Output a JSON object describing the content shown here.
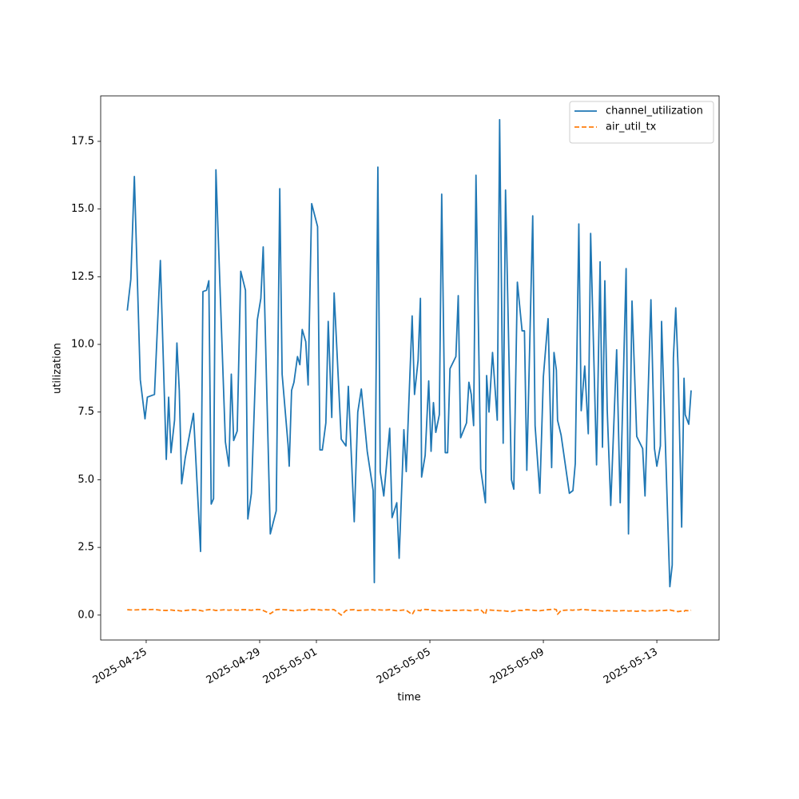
{
  "chart_data": {
    "type": "line",
    "xlabel": "time",
    "ylabel": "utilization",
    "x": [
      "2025-04-24 08:00",
      "2025-04-24 11:00",
      "2025-04-24 14:00",
      "2025-04-24 19:00",
      "2025-04-24 23:00",
      "2025-04-25 01:00",
      "2025-04-25 07:00",
      "2025-04-25 12:00",
      "2025-04-25 17:00",
      "2025-04-25 19:00",
      "2025-04-25 21:00",
      "2025-04-26 00:00",
      "2025-04-26 02:00",
      "2025-04-26 04:00",
      "2025-04-26 06:00",
      "2025-04-26 09:00",
      "2025-04-26 16:00",
      "2025-04-26 22:00",
      "2025-04-27 00:00",
      "2025-04-27 03:00",
      "2025-04-27 05:00",
      "2025-04-27 07:00",
      "2025-04-27 09:00",
      "2025-04-27 11:00",
      "2025-04-27 19:00",
      "2025-04-27 22:00",
      "2025-04-28 00:00",
      "2025-04-28 02:00",
      "2025-04-28 05:00",
      "2025-04-28 08:00",
      "2025-04-28 12:00",
      "2025-04-28 14:00",
      "2025-04-28 17:00",
      "2025-04-28 22:00",
      "2025-04-29 01:00",
      "2025-04-29 03:00",
      "2025-04-29 09:00",
      "2025-04-29 14:00",
      "2025-04-29 17:00",
      "2025-04-29 19:00",
      "2025-04-30 00:00",
      "2025-04-30 01:00",
      "2025-04-30 03:00",
      "2025-04-30 05:00",
      "2025-04-30 08:00",
      "2025-04-30 10:00",
      "2025-04-30 12:00",
      "2025-04-30 15:00",
      "2025-04-30 17:00",
      "2025-04-30 20:00",
      "2025-05-01 01:00",
      "2025-05-01 03:00",
      "2025-05-01 05:00",
      "2025-05-01 08:00",
      "2025-05-01 10:00",
      "2025-05-01 13:00",
      "2025-05-01 15:00",
      "2025-05-01 21:00",
      "2025-05-02 01:00",
      "2025-05-02 03:00",
      "2025-05-02 08:00",
      "2025-05-02 11:00",
      "2025-05-02 14:00",
      "2025-05-02 19:00",
      "2025-05-03 00:00",
      "2025-05-03 01:00",
      "2025-05-03 04:00",
      "2025-05-03 06:00",
      "2025-05-03 09:00",
      "2025-05-03 14:00",
      "2025-05-03 16:00",
      "2025-05-03 20:00",
      "2025-05-03 22:00",
      "2025-05-04 02:00",
      "2025-05-04 04:00",
      "2025-05-04 09:00",
      "2025-05-04 11:00",
      "2025-05-04 14:00",
      "2025-05-04 16:00",
      "2025-05-04 17:00",
      "2025-05-04 20:00",
      "2025-05-04 23:00",
      "2025-05-05 01:00",
      "2025-05-05 03:00",
      "2025-05-05 05:00",
      "2025-05-05 08:00",
      "2025-05-05 10:00",
      "2025-05-05 13:00",
      "2025-05-05 15:00",
      "2025-05-05 17:00",
      "2025-05-05 22:00",
      "2025-05-06 00:00",
      "2025-05-06 02:00",
      "2025-05-06 07:00",
      "2025-05-06 09:00",
      "2025-05-06 11:00",
      "2025-05-06 13:00",
      "2025-05-06 15:00",
      "2025-05-06 19:00",
      "2025-05-06 23:00",
      "2025-05-07 00:00",
      "2025-05-07 02:00",
      "2025-05-07 05:00",
      "2025-05-07 09:00",
      "2025-05-07 11:00",
      "2025-05-07 14:00",
      "2025-05-07 16:00",
      "2025-05-07 21:00",
      "2025-05-07 23:00",
      "2025-05-08 02:00",
      "2025-05-08 06:00",
      "2025-05-08 08:00",
      "2025-05-08 10:00",
      "2025-05-08 15:00",
      "2025-05-08 17:00",
      "2025-05-08 21:00",
      "2025-05-09 00:00",
      "2025-05-09 04:00",
      "2025-05-09 07:00",
      "2025-05-09 09:00",
      "2025-05-09 11:00",
      "2025-05-09 12:00",
      "2025-05-09 15:00",
      "2025-05-09 22:00",
      "2025-05-10 01:00",
      "2025-05-10 03:00",
      "2025-05-10 06:00",
      "2025-05-10 08:00",
      "2025-05-10 11:00",
      "2025-05-10 14:00",
      "2025-05-10 16:00",
      "2025-05-10 21:00",
      "2025-05-11 00:00",
      "2025-05-11 02:00",
      "2025-05-11 04:00",
      "2025-05-11 06:00",
      "2025-05-11 09:00",
      "2025-05-11 14:00",
      "2025-05-11 17:00",
      "2025-05-11 22:00",
      "2025-05-12 00:00",
      "2025-05-12 03:00",
      "2025-05-12 07:00",
      "2025-05-12 12:00",
      "2025-05-12 14:00",
      "2025-05-12 19:00",
      "2025-05-12 22:00",
      "2025-05-13 00:00",
      "2025-05-13 03:00",
      "2025-05-13 04:00",
      "2025-05-13 11:00",
      "2025-05-13 13:00",
      "2025-05-13 14:00",
      "2025-05-13 16:00",
      "2025-05-13 18:00",
      "2025-05-13 21:00",
      "2025-05-13 23:00",
      "2025-05-14 00:00",
      "2025-05-14 03:00",
      "2025-05-14 05:00"
    ],
    "series": [
      {
        "name": "channel_utilization",
        "color": "#1f77b4",
        "linestyle": "solid",
        "values": [
          11.25,
          12.4,
          16.2,
          8.7,
          7.25,
          8.05,
          8.15,
          13.1,
          5.75,
          8.05,
          6.0,
          7.2,
          10.05,
          8.3,
          4.85,
          5.8,
          7.45,
          2.35,
          11.95,
          12.0,
          12.35,
          4.1,
          4.3,
          16.45,
          6.4,
          5.5,
          8.9,
          6.45,
          6.8,
          12.7,
          12.0,
          3.55,
          4.5,
          10.9,
          11.7,
          13.6,
          3.0,
          3.85,
          15.75,
          8.9,
          6.3,
          5.5,
          8.3,
          8.6,
          9.55,
          9.25,
          10.55,
          10.1,
          8.5,
          15.2,
          14.35,
          6.1,
          6.1,
          7.1,
          10.85,
          7.3,
          11.9,
          6.5,
          6.25,
          8.45,
          3.45,
          7.5,
          8.35,
          6.05,
          4.6,
          1.2,
          16.55,
          5.3,
          4.4,
          6.9,
          3.6,
          4.15,
          2.1,
          6.85,
          5.3,
          11.05,
          8.15,
          9.4,
          11.7,
          5.1,
          5.9,
          8.65,
          6.05,
          7.85,
          6.75,
          7.4,
          15.55,
          6.0,
          6.0,
          9.1,
          9.55,
          11.8,
          6.55,
          7.1,
          8.6,
          8.15,
          7.0,
          16.25,
          5.4,
          4.15,
          8.85,
          7.5,
          9.7,
          7.2,
          18.3,
          6.35,
          15.7,
          5.0,
          4.65,
          12.3,
          10.5,
          10.5,
          5.35,
          14.75,
          7.0,
          4.5,
          8.8,
          10.95,
          5.45,
          9.7,
          9.05,
          7.2,
          6.65,
          4.5,
          4.6,
          5.6,
          14.45,
          7.55,
          9.2,
          6.7,
          14.1,
          5.55,
          13.05,
          6.2,
          12.35,
          7.6,
          4.05,
          9.8,
          4.15,
          12.8,
          3.0,
          11.6,
          6.6,
          6.15,
          4.4,
          11.65,
          6.15,
          5.5,
          6.25,
          10.85,
          1.05,
          1.85,
          9.5,
          11.35,
          9.1,
          3.25,
          8.75,
          7.4,
          7.05,
          8.3
        ]
      },
      {
        "name": "air_util_tx",
        "color": "#ff7f0e",
        "linestyle": "dashed",
        "values": [
          0.2,
          0.19,
          0.19,
          0.2,
          0.21,
          0.2,
          0.21,
          0.18,
          0.17,
          0.18,
          0.19,
          0.17,
          0.18,
          0.16,
          0.15,
          0.17,
          0.2,
          0.17,
          0.15,
          0.19,
          0.2,
          0.21,
          0.19,
          0.17,
          0.2,
          0.18,
          0.19,
          0.2,
          0.18,
          0.2,
          0.2,
          0.19,
          0.18,
          0.21,
          0.2,
          0.17,
          0.05,
          0.2,
          0.21,
          0.2,
          0.19,
          0.18,
          0.17,
          0.16,
          0.18,
          0.19,
          0.15,
          0.18,
          0.2,
          0.21,
          0.2,
          0.19,
          0.18,
          0.2,
          0.19,
          0.21,
          0.2,
          0.0,
          0.17,
          0.19,
          0.2,
          0.17,
          0.18,
          0.19,
          0.2,
          0.18,
          0.2,
          0.19,
          0.18,
          0.2,
          0.18,
          0.16,
          0.17,
          0.19,
          0.18,
          0.02,
          0.17,
          0.18,
          0.16,
          0.2,
          0.21,
          0.2,
          0.18,
          0.17,
          0.16,
          0.17,
          0.15,
          0.18,
          0.17,
          0.18,
          0.17,
          0.16,
          0.18,
          0.19,
          0.17,
          0.16,
          0.18,
          0.19,
          0.2,
          0.02,
          0.2,
          0.19,
          0.18,
          0.17,
          0.16,
          0.17,
          0.15,
          0.13,
          0.15,
          0.18,
          0.17,
          0.19,
          0.2,
          0.18,
          0.17,
          0.16,
          0.18,
          0.2,
          0.21,
          0.22,
          0.2,
          0.03,
          0.17,
          0.19,
          0.18,
          0.2,
          0.19,
          0.21,
          0.2,
          0.19,
          0.18,
          0.17,
          0.16,
          0.15,
          0.14,
          0.17,
          0.16,
          0.15,
          0.16,
          0.17,
          0.15,
          0.16,
          0.14,
          0.17,
          0.15,
          0.16,
          0.17,
          0.15,
          0.18,
          0.16,
          0.19,
          0.17,
          0.16,
          0.14,
          0.13,
          0.15,
          0.14,
          0.17,
          0.16,
          0.18
        ]
      }
    ],
    "xlim": [
      "2025-04-23 09:30",
      "2025-05-15 04:40"
    ],
    "xticks": [
      "2025-04-25",
      "2025-04-29",
      "2025-05-01",
      "2025-05-05",
      "2025-05-09",
      "2025-05-13"
    ],
    "ylim": [
      -0.92,
      19.18
    ],
    "yticks": [
      {
        "value": 0,
        "label": "0.0"
      },
      2.5,
      {
        "value": 5,
        "label": "5.0"
      },
      7.5,
      {
        "value": 10,
        "label": "10.0"
      },
      12.5,
      {
        "value": 15,
        "label": "15.0"
      },
      17.5
    ],
    "legend": "upper right",
    "grid": false
  }
}
